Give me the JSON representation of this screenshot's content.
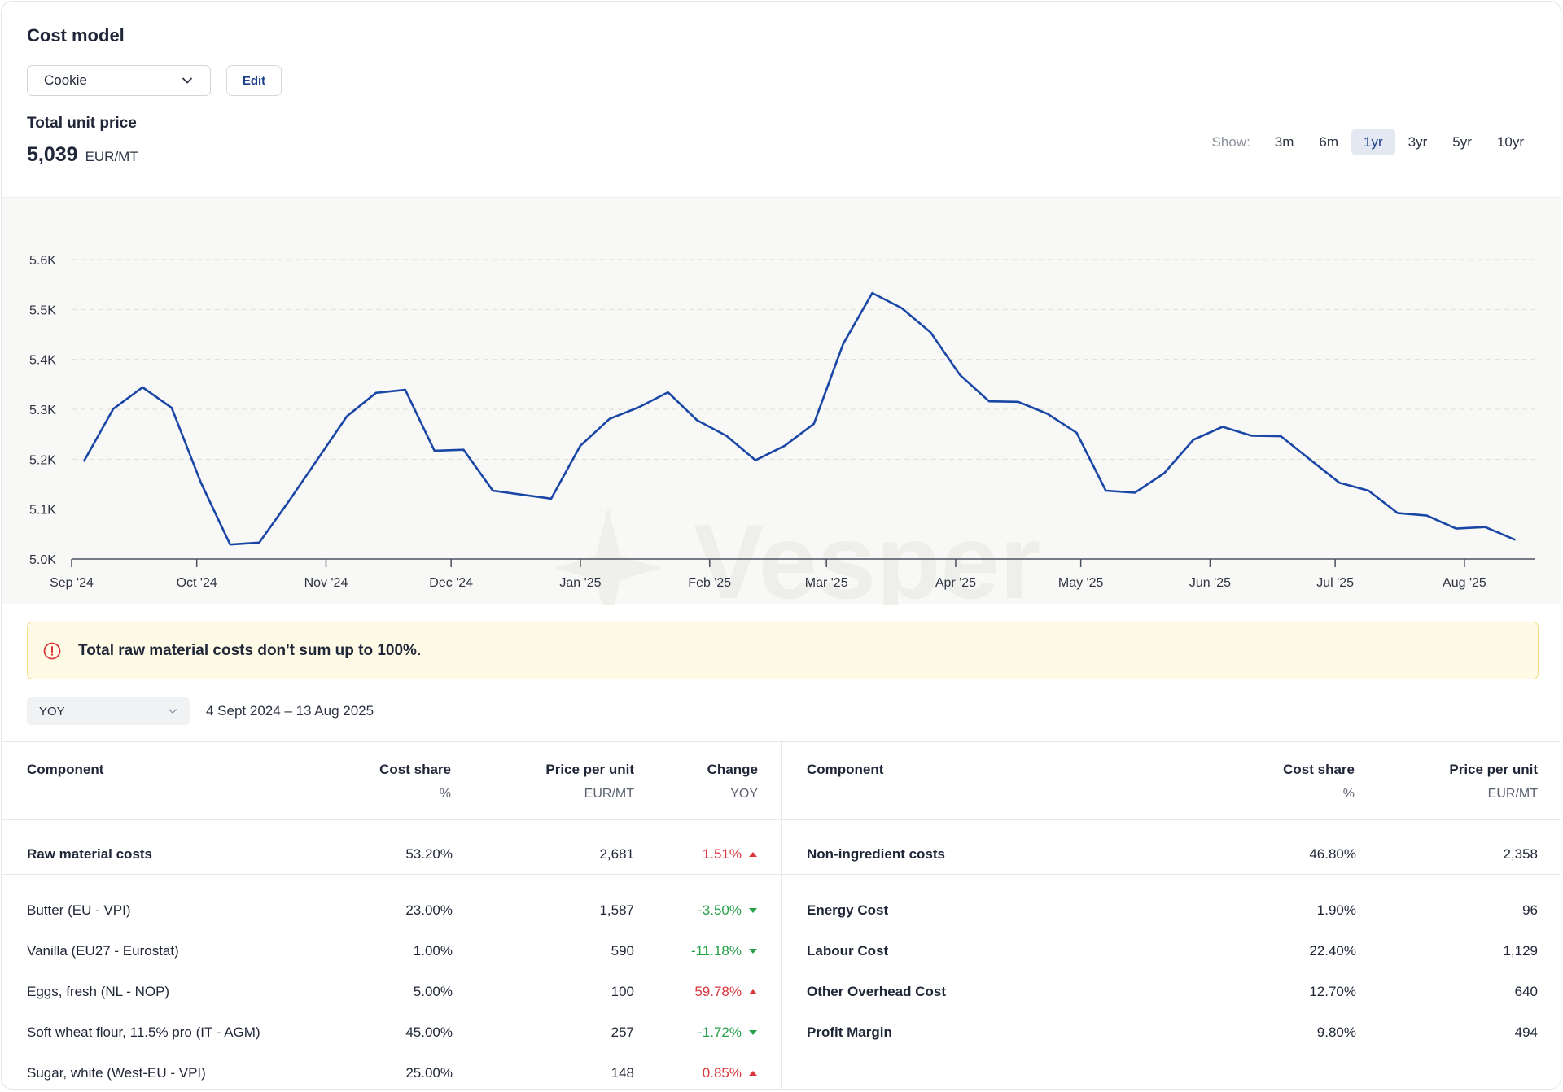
{
  "header": {
    "title": "Cost model",
    "product_select": "Cookie",
    "edit_label": "Edit",
    "price_label": "Total unit price",
    "price_value": "5,039",
    "price_unit": "EUR/MT",
    "range_label": "Show:",
    "range_options": [
      "3m",
      "6m",
      "1yr",
      "3yr",
      "5yr",
      "10yr"
    ],
    "range_selected": "1yr"
  },
  "chart_data": {
    "type": "line",
    "watermark": "Vesper",
    "ylim": [
      5000,
      5600
    ],
    "y_ticks": [
      "5.0K",
      "5.1K",
      "5.2K",
      "5.3K",
      "5.4K",
      "5.5K",
      "5.6K"
    ],
    "x_ticks": [
      "Sep '24",
      "Oct '24",
      "Nov '24",
      "Dec '24",
      "Jan '25",
      "Feb '25",
      "Mar '25",
      "Apr '25",
      "May '25",
      "Jun '25",
      "Jul '25",
      "Aug '25"
    ],
    "x_tick_dates": [
      "2024-09-01",
      "2024-10-01",
      "2024-11-01",
      "2024-12-01",
      "2025-01-01",
      "2025-02-01",
      "2025-03-01",
      "2025-04-01",
      "2025-05-01",
      "2025-06-01",
      "2025-07-01",
      "2025-08-01"
    ],
    "x_start": "2024-09-01",
    "x_end": "2025-08-18",
    "line_color": "#1a47a5",
    "series": [
      {
        "x": [
          "2024-09-04",
          "2024-09-11",
          "2024-09-18",
          "2024-09-25",
          "2024-10-02",
          "2024-10-09",
          "2024-10-16",
          "2024-10-23",
          "2024-10-30",
          "2024-11-06",
          "2024-11-13",
          "2024-11-20",
          "2024-11-27",
          "2024-12-04",
          "2024-12-11",
          "2024-12-18",
          "2024-12-25",
          "2025-01-01",
          "2025-01-08",
          "2025-01-15",
          "2025-01-22",
          "2025-01-29",
          "2025-02-05",
          "2025-02-12",
          "2025-02-19",
          "2025-02-26",
          "2025-03-05",
          "2025-03-12",
          "2025-03-19",
          "2025-03-26",
          "2025-04-02",
          "2025-04-09",
          "2025-04-16",
          "2025-04-23",
          "2025-04-30",
          "2025-05-07",
          "2025-05-14",
          "2025-05-21",
          "2025-05-28",
          "2025-06-04",
          "2025-06-11",
          "2025-06-18",
          "2025-06-25",
          "2025-07-02",
          "2025-07-09",
          "2025-07-16",
          "2025-07-23",
          "2025-07-30",
          "2025-08-06",
          "2025-08-13"
        ],
        "values": [
          5197,
          5301,
          5344,
          5303,
          5153,
          5029,
          5033,
          5115,
          5200,
          5286,
          5333,
          5339,
          5217,
          5219,
          5137,
          5129,
          5121,
          5227,
          5281,
          5304,
          5334,
          5278,
          5247,
          5198,
          5227,
          5271,
          5431,
          5533,
          5503,
          5454,
          5369,
          5316,
          5315,
          5291,
          5253,
          5137,
          5133,
          5172,
          5239,
          5265,
          5247,
          5246,
          5199,
          5153,
          5137,
          5092,
          5087,
          5061,
          5064,
          5039
        ]
      }
    ]
  },
  "warning": {
    "icon": "alert-circle-icon",
    "message": "Total raw material costs don't sum up to 100%."
  },
  "period": {
    "select": "YOY",
    "date_range": "4 Sept 2024 – 13 Aug 2025"
  },
  "raw_table": {
    "headers": {
      "component": "Component",
      "cost_share": "Cost share",
      "cost_share_unit": "%",
      "price": "Price per unit",
      "price_unit": "EUR/MT",
      "change": "Change",
      "change_unit": "YOY"
    },
    "total": {
      "name": "Raw material costs",
      "share": "53.20%",
      "price": "2,681",
      "change": "1.51%",
      "dir": "up"
    },
    "rows": [
      {
        "name": "Butter (EU - VPI)",
        "share": "23.00%",
        "price": "1,587",
        "change": "-3.50%",
        "dir": "down"
      },
      {
        "name": "Vanilla (EU27 - Eurostat)",
        "share": "1.00%",
        "price": "590",
        "change": "-11.18%",
        "dir": "down"
      },
      {
        "name": "Eggs, fresh (NL - NOP)",
        "share": "5.00%",
        "price": "100",
        "change": "59.78%",
        "dir": "up"
      },
      {
        "name": "Soft wheat flour, 11.5% pro (IT - AGM)",
        "share": "45.00%",
        "price": "257",
        "change": "-1.72%",
        "dir": "down"
      },
      {
        "name": "Sugar, white (West-EU - VPI)",
        "share": "25.00%",
        "price": "148",
        "change": "0.85%",
        "dir": "up"
      }
    ]
  },
  "non_table": {
    "headers": {
      "component": "Component",
      "cost_share": "Cost share",
      "cost_share_unit": "%",
      "price": "Price per unit",
      "price_unit": "EUR/MT"
    },
    "total": {
      "name": "Non-ingredient costs",
      "share": "46.80%",
      "price": "2,358"
    },
    "rows": [
      {
        "name": "Energy Cost",
        "share": "1.90%",
        "price": "96"
      },
      {
        "name": "Labour Cost",
        "share": "22.40%",
        "price": "1,129"
      },
      {
        "name": "Other Overhead Cost",
        "share": "12.70%",
        "price": "640"
      },
      {
        "name": "Profit Margin",
        "share": "9.80%",
        "price": "494"
      }
    ]
  },
  "colors": {
    "up": "#d9373d",
    "down": "#27a04a",
    "accent": "#1c3f8a"
  }
}
